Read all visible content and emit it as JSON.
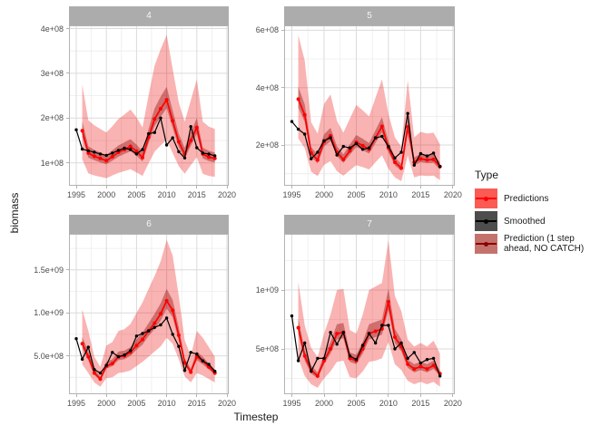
{
  "chart_data": {
    "type": "line",
    "title": "",
    "xlabel": "Timestep",
    "ylabel": "biomass",
    "legend_title": "Type",
    "legend": [
      "Predictions",
      "Smoothed",
      "Prediction (1 step\n ahead, NO CATCH)"
    ],
    "legend_position": "right",
    "grid": true,
    "value_unit": "1e8",
    "xlim": [
      1993.8,
      2020.3
    ],
    "xticks": [
      {
        "v": 1995,
        "t": "1995"
      },
      {
        "v": 2000,
        "t": "2000"
      },
      {
        "v": 2005,
        "t": "2005"
      },
      {
        "v": 2010,
        "t": "2010"
      },
      {
        "v": 2015,
        "t": "2015"
      },
      {
        "v": 2020,
        "t": "2020"
      }
    ],
    "xminor": [
      1997.5,
      2002.5,
      2007.5,
      2012.5,
      2017.5
    ],
    "colors": {
      "predictions": "#FF0000",
      "smoothed": "#000000",
      "prediction_no_catch": "#8B0000",
      "ribbon": "rgba(237,10,5,0.31)",
      "ribbon_no_catch": "rgba(139,0,0,0.38)",
      "strip_fill": "#ACACAC",
      "strip_text": "#F5F5F5",
      "grid_major": "#DBDBDB",
      "grid_minor": "#ECECEC",
      "panel_border": "#B3B3B3",
      "tick_text": "#4D4D4D",
      "legend_key_fills": [
        "#FA5B55",
        "#4D4D4D",
        "#C4736C"
      ]
    },
    "facets": [
      {
        "label": "4",
        "ylim": [
          0.49,
          4.07
        ],
        "yticks": [
          {
            "v": 1,
            "t": "1e+08"
          },
          {
            "v": 2,
            "t": "2e+08"
          },
          {
            "v": 3,
            "t": "3e+08"
          },
          {
            "v": 4,
            "t": "4e+08"
          }
        ],
        "yminor": [
          0.5,
          1.5,
          2.5,
          3.5
        ],
        "series": {
          "smoothed": {
            "x_start": 1995,
            "y": [
              1.74,
              1.31,
              1.27,
              1.24,
              1.2,
              1.17,
              1.22,
              1.28,
              1.33,
              1.3,
              1.2,
              1.3,
              1.65,
              1.68,
              2.0,
              1.4,
              1.56,
              1.25,
              1.11,
              1.81,
              1.34,
              1.22,
              1.2,
              1.16
            ]
          },
          "predictions": {
            "x_start": 1996,
            "y": [
              1.72,
              1.22,
              1.15,
              1.1,
              1.05,
              1.14,
              1.24,
              1.3,
              1.37,
              1.26,
              1.12,
              1.57,
              1.98,
              2.21,
              2.41,
              1.94,
              1.47,
              1.2,
              1.5,
              1.79,
              1.2,
              1.13,
              1.1
            ]
          },
          "ribbon": {
            "x_start": 1996,
            "upper": [
              2.75,
              1.95,
              1.84,
              1.76,
              1.68,
              1.82,
              1.98,
              2.08,
              2.19,
              2.02,
              1.79,
              2.51,
              3.17,
              3.54,
              3.86,
              3.1,
              2.35,
              1.92,
              2.4,
              2.86,
              1.92,
              1.81,
              1.76
            ],
            "lower": [
              1.08,
              0.77,
              0.72,
              0.69,
              0.66,
              0.72,
              0.78,
              0.82,
              0.86,
              0.79,
              0.71,
              0.99,
              1.25,
              1.39,
              1.52,
              1.22,
              0.93,
              0.76,
              0.95,
              1.13,
              0.76,
              0.71,
              0.69
            ]
          },
          "prediction_no_catch": {
            "x_start": 1996,
            "y": [
              1.72,
              1.22,
              1.15,
              1.1,
              1.05,
              1.14,
              1.24,
              1.3,
              1.37,
              1.26,
              1.12,
              1.57,
              1.98,
              2.21,
              2.41,
              1.94,
              1.47,
              1.2,
              1.5,
              1.79,
              1.2,
              1.13,
              1.1
            ],
            "upper": [
              1.93,
              1.37,
              1.29,
              1.23,
              1.18,
              1.28,
              1.39,
              1.46,
              1.53,
              1.41,
              1.25,
              1.76,
              2.22,
              2.48,
              2.7,
              2.17,
              1.65,
              1.34,
              1.68,
              2.0,
              1.34,
              1.27,
              1.23
            ],
            "lower": [
              1.58,
              1.12,
              1.06,
              1.01,
              0.97,
              1.05,
              1.14,
              1.2,
              1.26,
              1.16,
              1.03,
              1.44,
              1.82,
              2.03,
              2.22,
              1.78,
              1.35,
              1.1,
              1.38,
              1.65,
              1.1,
              1.04,
              1.01
            ]
          }
        }
      },
      {
        "label": "5",
        "ylim": [
          0.58,
          6.17
        ],
        "yticks": [
          {
            "v": 2,
            "t": "2e+08"
          },
          {
            "v": 4,
            "t": "4e+08"
          },
          {
            "v": 6,
            "t": "6e+08"
          }
        ],
        "yminor": [
          1,
          3,
          5
        ],
        "series": {
          "smoothed": {
            "x_start": 1995,
            "y": [
              2.82,
              2.55,
              2.38,
              1.52,
              1.75,
              2.15,
              2.25,
              1.65,
              1.95,
              1.9,
              2.05,
              1.85,
              1.9,
              2.25,
              2.3,
              1.95,
              1.55,
              1.75,
              3.1,
              1.3,
              1.7,
              1.62,
              1.72,
              1.25
            ]
          },
          "predictions": {
            "x_start": 1996,
            "y": [
              3.6,
              3.05,
              1.72,
              1.48,
              2.12,
              2.32,
              1.75,
              1.5,
              1.8,
              2.1,
              1.98,
              1.85,
              2.25,
              2.65,
              1.9,
              1.4,
              1.2,
              2.63,
              1.4,
              1.52,
              1.48,
              1.5,
              1.25
            ]
          },
          "ribbon": {
            "x_start": 1996,
            "upper": [
              5.83,
              4.94,
              2.79,
              2.4,
              3.43,
              3.76,
              2.84,
              2.43,
              2.92,
              3.4,
              3.21,
              3.0,
              3.65,
              4.29,
              3.08,
              2.27,
              1.94,
              4.26,
              2.27,
              2.46,
              2.4,
              2.43,
              2.03
            ],
            "lower": [
              2.23,
              1.89,
              1.07,
              0.92,
              1.31,
              1.44,
              1.09,
              0.93,
              1.12,
              1.3,
              1.23,
              1.15,
              1.4,
              1.64,
              1.18,
              0.87,
              0.74,
              1.63,
              0.87,
              0.94,
              0.92,
              0.93,
              0.78
            ]
          },
          "prediction_no_catch": {
            "x_start": 1996,
            "y": [
              3.6,
              3.05,
              1.72,
              1.48,
              2.12,
              2.32,
              1.75,
              1.5,
              1.8,
              2.1,
              1.98,
              1.85,
              2.25,
              2.65,
              1.9,
              1.4,
              1.2,
              2.63,
              1.4,
              1.52,
              1.48,
              1.5,
              1.25
            ],
            "upper": [
              4.03,
              3.42,
              1.93,
              1.66,
              2.37,
              2.6,
              1.96,
              1.68,
              2.02,
              2.35,
              2.22,
              2.07,
              2.52,
              2.97,
              2.13,
              1.57,
              1.34,
              2.95,
              1.57,
              1.7,
              1.66,
              1.68,
              1.4
            ],
            "lower": [
              3.31,
              2.81,
              1.58,
              1.36,
              1.95,
              2.13,
              1.61,
              1.38,
              1.66,
              1.93,
              1.82,
              1.7,
              2.07,
              2.44,
              1.75,
              1.29,
              1.1,
              2.42,
              1.29,
              1.4,
              1.36,
              1.38,
              1.15
            ]
          }
        }
      },
      {
        "label": "6",
        "ylim": [
          0.53,
          19.2
        ],
        "yticks": [
          {
            "v": 5,
            "t": "5.0e+08"
          },
          {
            "v": 10,
            "t": "1.0e+09"
          },
          {
            "v": 15,
            "t": "1.5e+09"
          }
        ],
        "yminor": [
          2.5,
          7.5,
          12.5,
          17.5
        ],
        "series": {
          "smoothed": {
            "x_start": 1995,
            "y": [
              7.0,
              4.6,
              6.0,
              3.4,
              3.0,
              3.9,
              5.4,
              4.9,
              5.1,
              5.6,
              7.3,
              7.6,
              7.9,
              8.3,
              8.6,
              9.4,
              7.5,
              6.1,
              3.3,
              5.4,
              5.2,
              4.4,
              4.0,
              3.2
            ]
          },
          "predictions": {
            "x_start": 1996,
            "y": [
              6.4,
              4.9,
              3.0,
              2.3,
              3.8,
              4.1,
              4.9,
              5.0,
              5.4,
              6.2,
              6.9,
              7.9,
              8.8,
              9.9,
              11.4,
              10.3,
              7.4,
              4.2,
              3.1,
              4.9,
              4.4,
              3.7,
              3.0
            ]
          },
          "ribbon": {
            "x_start": 1996,
            "upper": [
              10.4,
              7.9,
              4.9,
              3.7,
              6.2,
              6.6,
              7.9,
              8.1,
              8.7,
              10.0,
              11.2,
              12.8,
              14.3,
              16.0,
              18.5,
              16.7,
              12.0,
              6.8,
              5.0,
              7.9,
              7.1,
              6.0,
              4.9
            ],
            "lower": [
              4.0,
              3.0,
              1.9,
              1.4,
              2.4,
              2.5,
              3.0,
              3.1,
              3.3,
              3.8,
              4.3,
              4.9,
              5.5,
              6.1,
              7.1,
              6.4,
              4.6,
              2.6,
              1.9,
              3.0,
              2.7,
              2.3,
              1.9
            ]
          },
          "prediction_no_catch": {
            "x_start": 1996,
            "y": [
              6.4,
              4.9,
              3.0,
              2.3,
              3.8,
              4.1,
              4.9,
              5.0,
              5.4,
              6.2,
              6.9,
              7.9,
              8.8,
              9.9,
              11.4,
              10.3,
              7.4,
              4.2,
              3.1,
              4.9,
              4.4,
              3.7,
              3.0
            ],
            "upper": [
              7.2,
              5.5,
              3.4,
              2.6,
              4.3,
              4.6,
              5.5,
              5.6,
              6.0,
              6.9,
              7.7,
              8.8,
              9.9,
              11.1,
              12.8,
              11.5,
              8.3,
              4.7,
              3.5,
              5.5,
              4.9,
              4.1,
              3.4
            ],
            "lower": [
              5.9,
              4.5,
              2.8,
              2.1,
              3.5,
              3.8,
              4.5,
              4.6,
              5.0,
              5.7,
              6.3,
              7.3,
              8.1,
              9.1,
              10.5,
              9.5,
              6.8,
              3.9,
              2.9,
              4.5,
              4.0,
              3.4,
              2.8
            ]
          }
        }
      },
      {
        "label": "7",
        "ylim": [
          1.15,
          14.77
        ],
        "yticks": [
          {
            "v": 5,
            "t": "5e+08"
          },
          {
            "v": 10,
            "t": "1e+09"
          }
        ],
        "yminor": [
          2.5,
          7.5,
          12.5
        ],
        "series": {
          "smoothed": {
            "x_start": 1995,
            "y": [
              7.8,
              4.0,
              5.5,
              3.1,
              4.2,
              4.2,
              6.4,
              5.4,
              6.4,
              4.4,
              4.1,
              5.3,
              6.3,
              5.5,
              7.0,
              7.0,
              5.0,
              5.5,
              4.2,
              4.7,
              3.8,
              4.1,
              4.2,
              2.7
            ]
          },
          "predictions": {
            "x_start": 1996,
            "y": [
              6.8,
              4.4,
              3.2,
              2.7,
              4.0,
              5.0,
              6.3,
              6.4,
              4.2,
              4.0,
              5.0,
              6.3,
              6.5,
              6.7,
              9.0,
              6.0,
              5.2,
              3.7,
              3.3,
              3.5,
              3.3,
              3.6,
              2.9
            ]
          },
          "ribbon": {
            "x_start": 1996,
            "upper": [
              10.7,
              7.0,
              5.1,
              4.3,
              6.3,
              7.9,
              10.0,
              10.1,
              6.6,
              6.3,
              7.9,
              10.0,
              10.3,
              10.6,
              14.2,
              9.5,
              8.2,
              5.8,
              5.2,
              5.5,
              5.2,
              5.7,
              4.6
            ],
            "lower": [
              4.2,
              2.7,
              2.0,
              1.7,
              2.5,
              3.1,
              3.9,
              4.0,
              2.6,
              2.5,
              3.1,
              3.9,
              4.0,
              4.2,
              5.6,
              3.7,
              3.2,
              2.3,
              2.0,
              2.2,
              2.0,
              2.2,
              1.8
            ]
          },
          "prediction_no_catch": {
            "x_start": 1996,
            "y": [
              6.8,
              4.4,
              3.2,
              2.7,
              4.0,
              5.0,
              6.3,
              6.4,
              4.2,
              4.0,
              5.0,
              6.3,
              6.5,
              6.7,
              9.0,
              6.0,
              5.2,
              3.7,
              3.3,
              3.5,
              3.3,
              3.6,
              2.9
            ],
            "upper": [
              7.6,
              4.9,
              3.6,
              3.0,
              4.5,
              5.6,
              7.1,
              7.2,
              4.7,
              4.5,
              5.6,
              7.1,
              7.3,
              7.5,
              10.1,
              6.7,
              5.8,
              4.1,
              3.7,
              3.9,
              3.7,
              4.0,
              3.2
            ],
            "lower": [
              6.3,
              4.0,
              2.9,
              2.5,
              3.7,
              4.6,
              5.8,
              5.9,
              3.9,
              3.7,
              4.6,
              5.8,
              6.0,
              6.2,
              8.3,
              5.5,
              4.8,
              3.4,
              3.0,
              3.2,
              3.0,
              3.3,
              2.7
            ]
          }
        }
      }
    ]
  }
}
